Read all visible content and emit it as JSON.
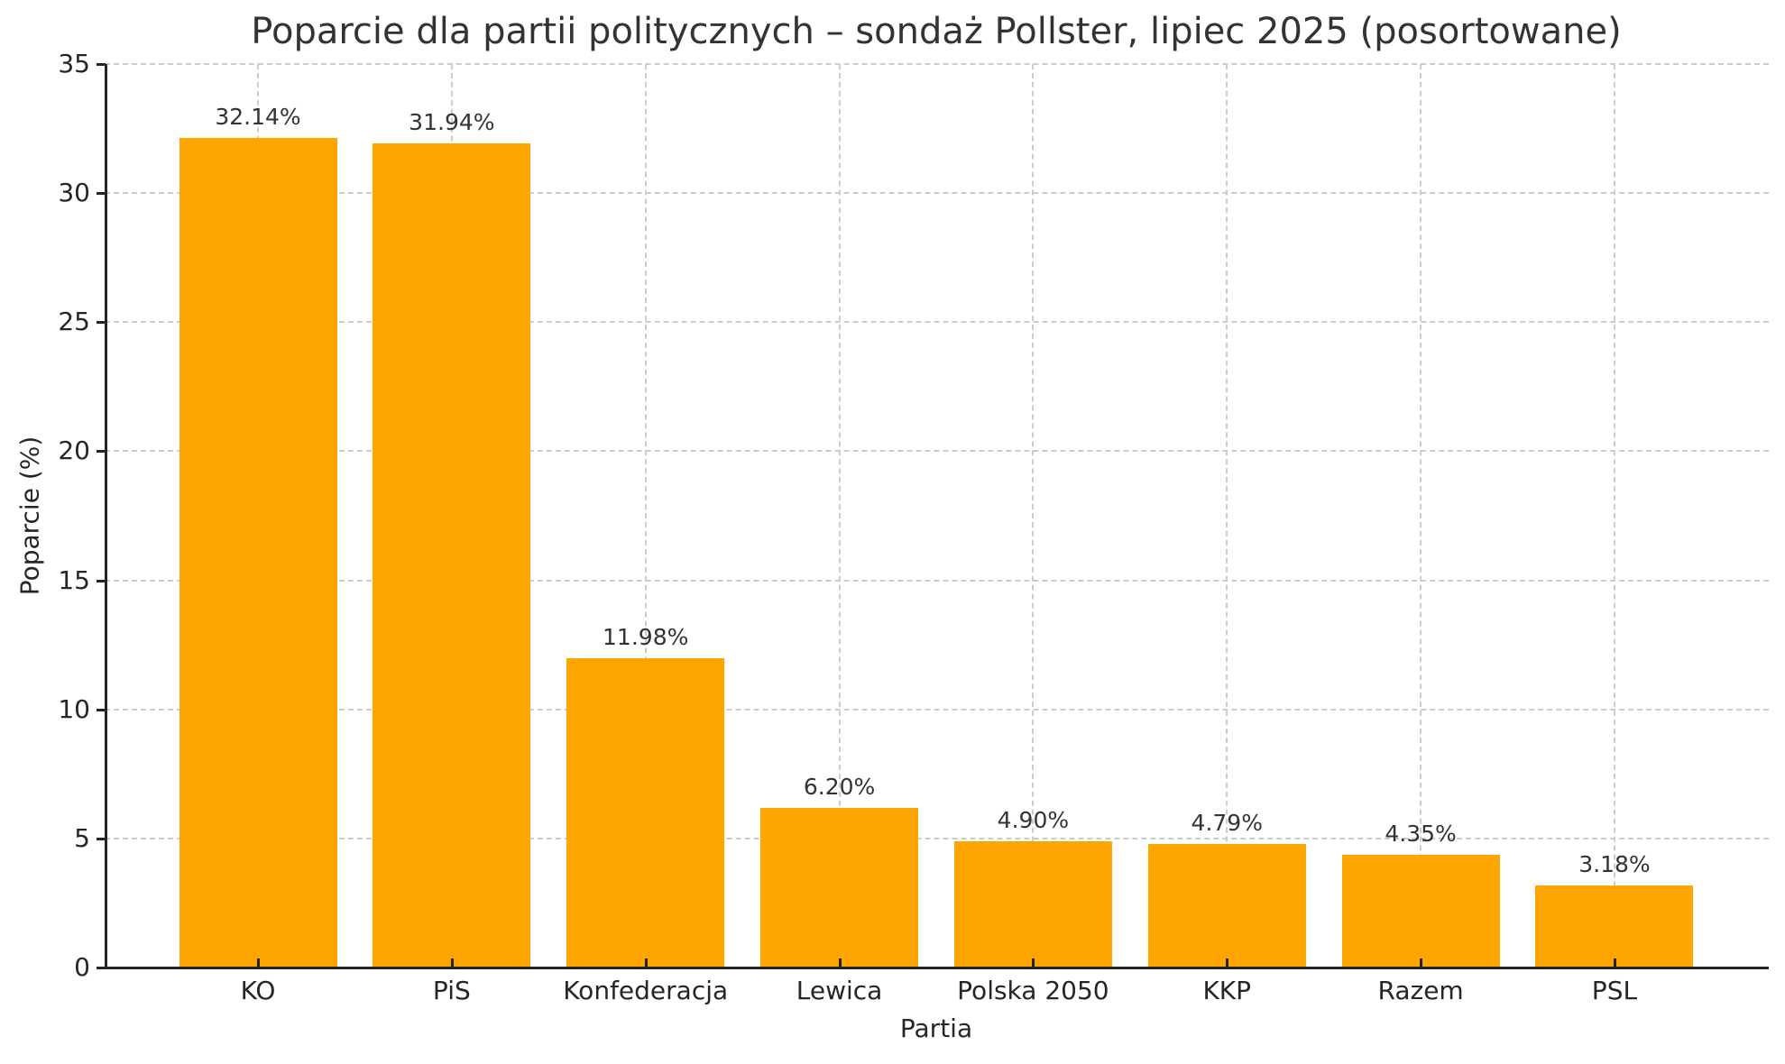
{
  "chart_data": {
    "type": "bar",
    "title": "Poparcie dla partii politycznych – sondaż Pollster, lipiec 2025 (posortowane)",
    "xlabel": "Partia",
    "ylabel": "Poparcie (%)",
    "categories": [
      "KO",
      "PiS",
      "Konfederacja",
      "Lewica",
      "Polska 2050",
      "KKP",
      "Razem",
      "PSL"
    ],
    "values": [
      32.14,
      31.94,
      11.98,
      6.2,
      4.9,
      4.79,
      4.35,
      3.18
    ],
    "value_labels": [
      "32.14%",
      "31.94%",
      "11.98%",
      "6.20%",
      "4.90%",
      "4.79%",
      "4.35%",
      "3.18%"
    ],
    "ylim": [
      0,
      35
    ],
    "yticks": [
      0,
      5,
      10,
      15,
      20,
      25,
      30,
      35
    ],
    "grid": true,
    "bar_color": "#ffa500"
  }
}
